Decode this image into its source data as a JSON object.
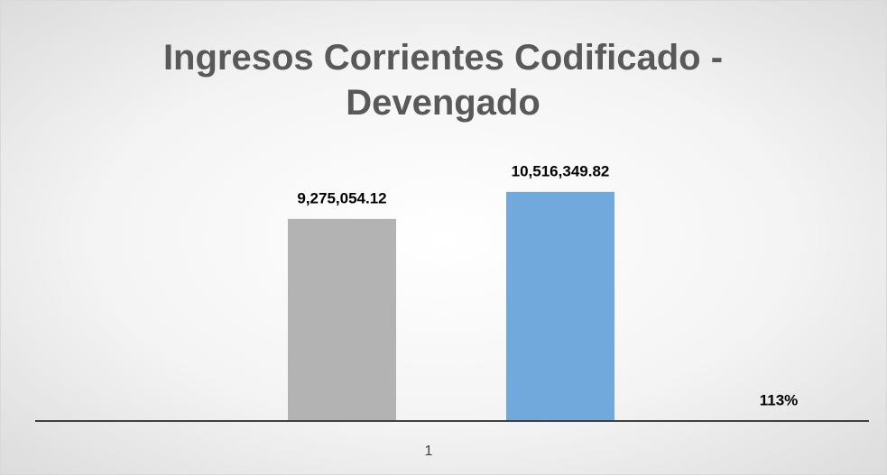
{
  "chart_data": {
    "type": "bar",
    "title": "Ingresos Corrientes Codificado - Devengado",
    "categories": [
      "1"
    ],
    "series": [
      {
        "color": "#b3b3b3",
        "values": [
          9275054.12
        ],
        "value_labels": [
          "9,275,054.12"
        ]
      },
      {
        "color": "#72a9dc",
        "values": [
          10516349.82
        ],
        "value_labels": [
          "10,516,349.82"
        ]
      },
      {
        "color": "#ed7d31",
        "values": [
          113
        ],
        "value_labels": [
          "113%"
        ]
      }
    ],
    "ylim": [
      0,
      12000000
    ]
  }
}
